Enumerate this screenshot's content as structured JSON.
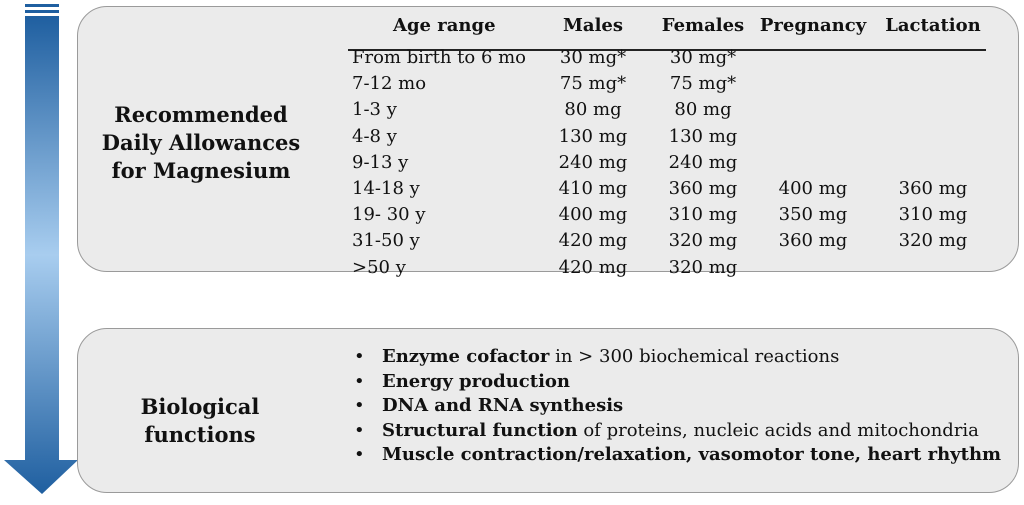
{
  "colors": {
    "panel_bg": "#ebebeb",
    "panel_border": "#9a9a9a",
    "arrow_top": "#1f5fa0",
    "arrow_mid": "#9cc4e8",
    "arrow_bottom": "#1f5fa0"
  },
  "arrow_icon": "down-arrow-icon",
  "rda": {
    "title_lines": [
      "Recommended",
      "Daily Allowances",
      "for Magnesium"
    ],
    "headers": {
      "age": "Age range",
      "males": "Males",
      "females": "Females",
      "pregnancy": "Pregnancy",
      "lactation": "Lactation"
    },
    "rows": [
      {
        "age": "From birth to 6 mo",
        "males": "30 mg*",
        "females": "30 mg*",
        "pregnancy": "",
        "lactation": ""
      },
      {
        "age": "7-12 mo",
        "males": "75 mg*",
        "females": "75 mg*",
        "pregnancy": "",
        "lactation": ""
      },
      {
        "age": "1-3 y",
        "males": "80 mg",
        "females": "80 mg",
        "pregnancy": "",
        "lactation": ""
      },
      {
        "age": "4-8 y",
        "males": "130 mg",
        "females": "130 mg",
        "pregnancy": "",
        "lactation": ""
      },
      {
        "age": "9-13 y",
        "males": "240 mg",
        "females": "240 mg",
        "pregnancy": "",
        "lactation": ""
      },
      {
        "age": "14-18 y",
        "males": "410 mg",
        "females": "360 mg",
        "pregnancy": "400 mg",
        "lactation": "360 mg"
      },
      {
        "age": "19- 30 y",
        "males": "400 mg",
        "females": "310 mg",
        "pregnancy": "350 mg",
        "lactation": "310 mg"
      },
      {
        "age": "31-50 y",
        "males": "420 mg",
        "females": "320 mg",
        "pregnancy": "360 mg",
        "lactation": "320 mg"
      },
      {
        "age": ">50 y",
        "males": "420 mg",
        "females": "320 mg",
        "pregnancy": "",
        "lactation": ""
      }
    ]
  },
  "bio": {
    "title": "Biological functions",
    "bullet_symbol": "•",
    "items": [
      {
        "bold": "Enzyme cofactor",
        "rest": " in > 300 biochemical reactions"
      },
      {
        "bold": "Energy production",
        "rest": ""
      },
      {
        "bold": "DNA and RNA synthesis",
        "rest": ""
      },
      {
        "bold": "Structural function",
        "rest": " of proteins, nucleic acids and mitochondria"
      },
      {
        "bold": "Muscle contraction/relaxation, vasomotor tone, heart rhythm",
        "rest": ""
      }
    ]
  }
}
